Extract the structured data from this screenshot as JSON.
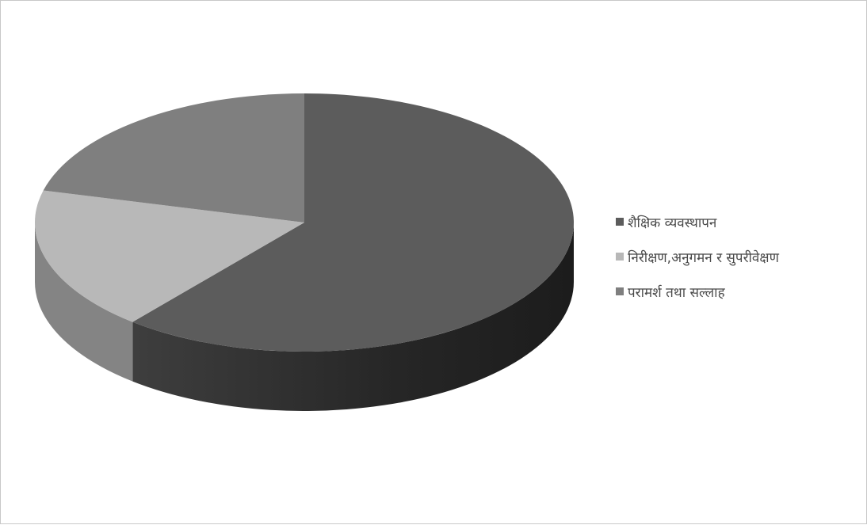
{
  "chart_data": {
    "type": "pie",
    "style": "3d",
    "categories": [
      "शैक्षिक व्यवस्थापन",
      "निरीक्षण,अनुगमन र सुपरीवेक्षण",
      "परामर्श तथा सल्लाह"
    ],
    "values": [
      61,
      18,
      21
    ],
    "colors": [
      "#5c5c5c",
      "#b8b8b8",
      "#7f7f7f"
    ],
    "title": "",
    "legend_position": "right"
  }
}
